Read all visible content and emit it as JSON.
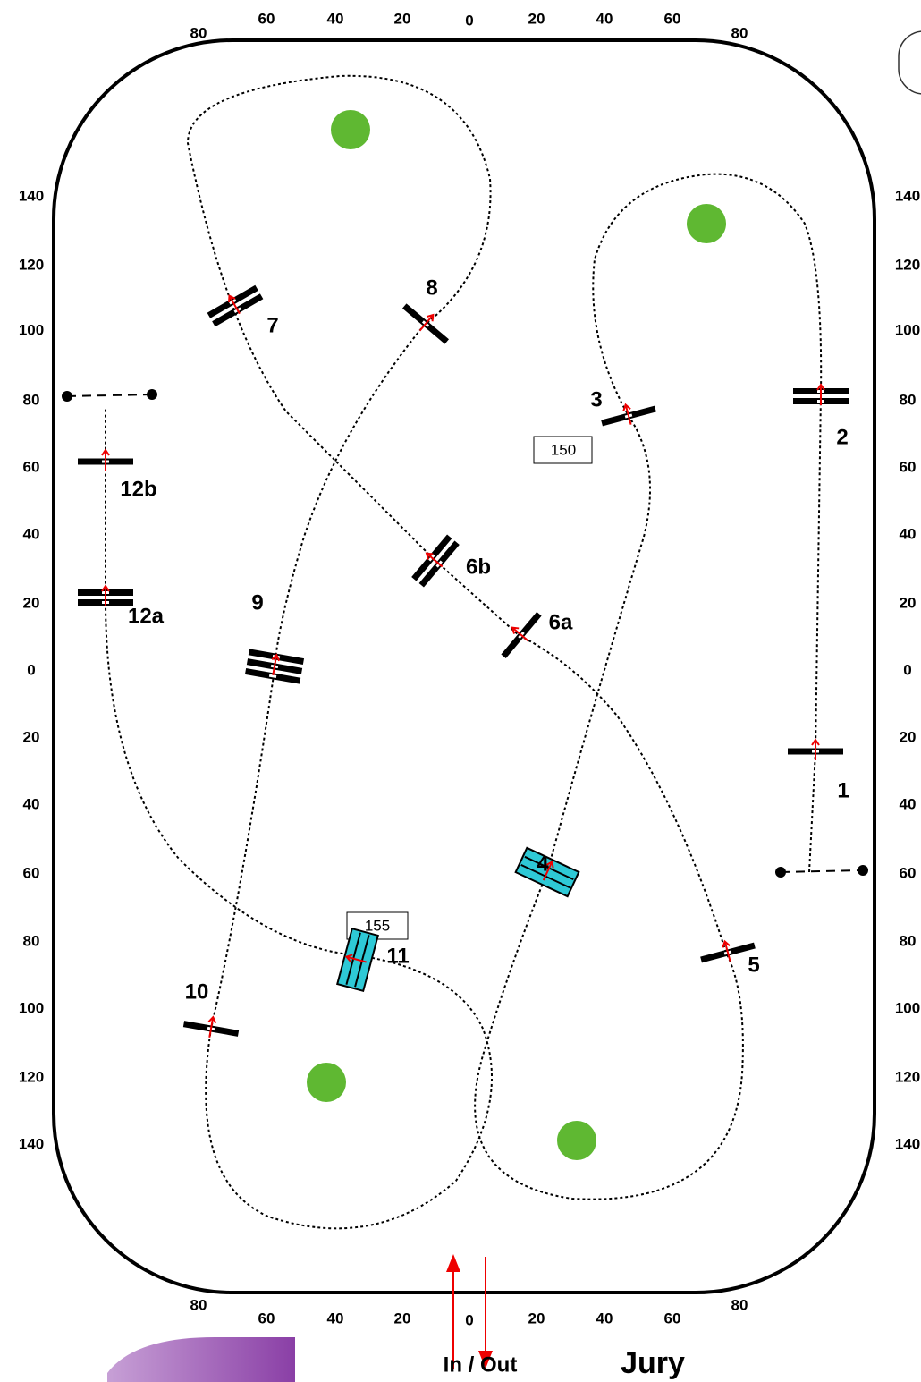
{
  "scale": {
    "top": [
      "80",
      "60",
      "40",
      "20",
      "0",
      "20",
      "40",
      "60",
      "80"
    ],
    "bottom": [
      "80",
      "60",
      "40",
      "20",
      "0",
      "20",
      "40",
      "60",
      "80"
    ],
    "left": [
      "140",
      "120",
      "100",
      "80",
      "60",
      "40",
      "20",
      "0",
      "20",
      "40",
      "60",
      "80",
      "100",
      "120",
      "140"
    ],
    "right": [
      "140",
      "120",
      "100",
      "80",
      "60",
      "40",
      "20",
      "0",
      "20",
      "40",
      "60",
      "80",
      "100",
      "120",
      "140"
    ]
  },
  "jumps": [
    {
      "label": "1"
    },
    {
      "label": "2"
    },
    {
      "label": "3"
    },
    {
      "label": "4"
    },
    {
      "label": "5"
    },
    {
      "label": "6a"
    },
    {
      "label": "6b"
    },
    {
      "label": "7"
    },
    {
      "label": "8"
    },
    {
      "label": "9"
    },
    {
      "label": "10"
    },
    {
      "label": "11"
    },
    {
      "label": "12a"
    },
    {
      "label": "12b"
    }
  ],
  "distances": [
    "150",
    "155"
  ],
  "entrance": "In / Out",
  "jury": "Jury"
}
